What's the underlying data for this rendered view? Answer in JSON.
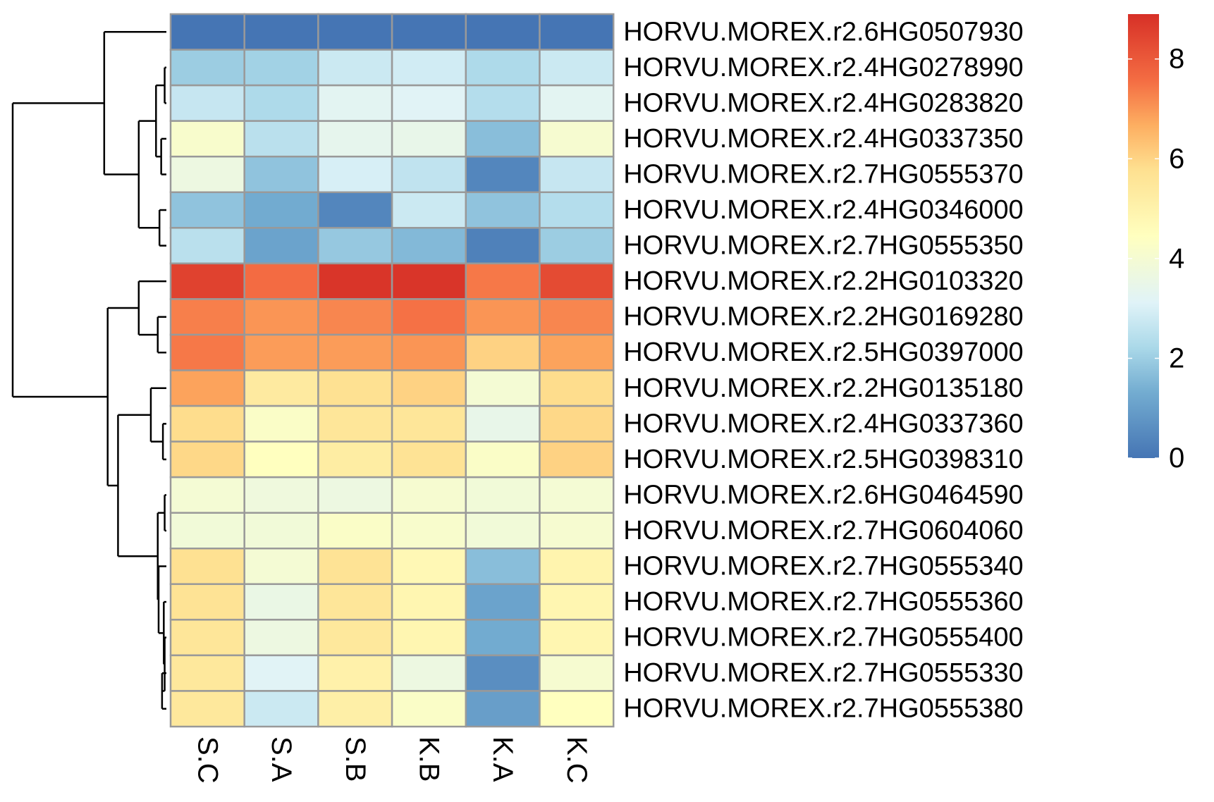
{
  "chart_data": {
    "type": "heatmap",
    "title": "",
    "rows": [
      "HORVU.MOREX.r2.6HG0507930",
      "HORVU.MOREX.r2.4HG0278990",
      "HORVU.MOREX.r2.4HG0283820",
      "HORVU.MOREX.r2.4HG0337350",
      "HORVU.MOREX.r2.7HG0555370",
      "HORVU.MOREX.r2.4HG0346000",
      "HORVU.MOREX.r2.7HG0555350",
      "HORVU.MOREX.r2.2HG0103320",
      "HORVU.MOREX.r2.2HG0169280",
      "HORVU.MOREX.r2.5HG0397000",
      "HORVU.MOREX.r2.2HG0135180",
      "HORVU.MOREX.r2.4HG0337360",
      "HORVU.MOREX.r2.5HG0398310",
      "HORVU.MOREX.r2.6HG0464590",
      "HORVU.MOREX.r2.7HG0604060",
      "HORVU.MOREX.r2.7HG0555340",
      "HORVU.MOREX.r2.7HG0555360",
      "HORVU.MOREX.r2.7HG0555400",
      "HORVU.MOREX.r2.7HG0555330",
      "HORVU.MOREX.r2.7HG0555380"
    ],
    "columns": [
      "S.C",
      "S.A",
      "S.B",
      "K.B",
      "K.A",
      "K.C"
    ],
    "values": [
      [
        0.0,
        0.0,
        0.0,
        0.0,
        0.0,
        0.0
      ],
      [
        2.0,
        2.1,
        2.8,
        2.9,
        2.3,
        2.8
      ],
      [
        2.7,
        2.3,
        3.3,
        3.2,
        2.4,
        3.3
      ],
      [
        4.2,
        2.5,
        3.4,
        3.5,
        1.7,
        4.1
      ],
      [
        3.7,
        1.8,
        3.0,
        2.6,
        0.4,
        2.7
      ],
      [
        1.8,
        1.3,
        0.4,
        2.8,
        1.8,
        2.4
      ],
      [
        2.5,
        1.1,
        1.9,
        1.6,
        0.3,
        2.0
      ],
      [
        8.6,
        7.7,
        8.9,
        8.9,
        7.5,
        8.4
      ],
      [
        7.4,
        7.1,
        7.3,
        7.6,
        7.1,
        7.3
      ],
      [
        7.5,
        7.0,
        7.0,
        7.1,
        6.1,
        6.9
      ],
      [
        6.9,
        5.4,
        5.8,
        6.1,
        4.0,
        5.9
      ],
      [
        5.9,
        4.3,
        5.6,
        5.6,
        3.5,
        6.0
      ],
      [
        6.0,
        4.5,
        5.3,
        5.7,
        4.3,
        6.1
      ],
      [
        4.0,
        3.8,
        3.7,
        4.1,
        3.9,
        4.0
      ],
      [
        3.9,
        3.9,
        4.3,
        4.2,
        3.9,
        4.1
      ],
      [
        5.8,
        4.0,
        5.7,
        4.8,
        1.7,
        5.0
      ],
      [
        5.7,
        3.6,
        5.6,
        4.9,
        1.1,
        4.9
      ],
      [
        5.6,
        3.7,
        5.5,
        4.9,
        1.3,
        4.9
      ],
      [
        5.5,
        3.2,
        5.1,
        3.7,
        0.6,
        4.1
      ],
      [
        5.5,
        2.8,
        5.2,
        4.3,
        1.0,
        4.5
      ]
    ],
    "color_scale": {
      "min": 0,
      "max": 9,
      "stops": [
        {
          "value": 0,
          "color": "#4575b4"
        },
        {
          "value": 1.35,
          "color": "#74add1"
        },
        {
          "value": 2.25,
          "color": "#abd9e9"
        },
        {
          "value": 3.15,
          "color": "#e0f3f8"
        },
        {
          "value": 4.5,
          "color": "#ffffbf"
        },
        {
          "value": 5.85,
          "color": "#fee090"
        },
        {
          "value": 6.75,
          "color": "#fdae61"
        },
        {
          "value": 7.65,
          "color": "#f46d43"
        },
        {
          "value": 9,
          "color": "#d73027"
        }
      ]
    },
    "legend": {
      "position": "right",
      "ticks": [
        0,
        2,
        4,
        6,
        8
      ],
      "tick_labels": [
        "0",
        "2",
        "4",
        "6",
        "8"
      ]
    },
    "dendrogram": {
      "side": "left",
      "rows_clustered": true
    }
  }
}
